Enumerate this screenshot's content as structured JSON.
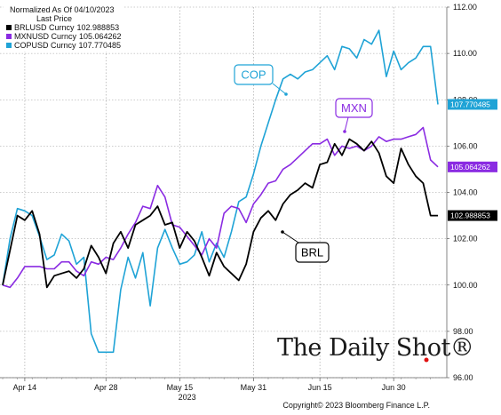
{
  "legend": {
    "header": "Normalized As Of 04/10/2023",
    "subheader": "Last Price",
    "items": [
      {
        "label": "BRLUSD Curncy",
        "value": "102.988853",
        "color": "#000000"
      },
      {
        "label": "MXNUSD Curncy",
        "value": "105.064262",
        "color": "#8a2be2"
      },
      {
        "label": "COPUSD Curncy",
        "value": "107.770485",
        "color": "#1fa3d6"
      }
    ]
  },
  "brand": "The Daily Shot®",
  "copyright": "Copyright© 2023 Bloomberg Finance L.P.",
  "chart_data": {
    "type": "line",
    "x_ticks": [
      "Apr 14",
      "Apr 28",
      "May 15",
      "May 31",
      "Jun 15",
      "Jun 30"
    ],
    "x_sublabel": "2023",
    "ylim": [
      96,
      112
    ],
    "yticks": [
      "96.00",
      "98.00",
      "100.00",
      "102.00",
      "104.00",
      "106.00",
      "108.00",
      "110.00",
      "112.00"
    ],
    "grid": true,
    "callouts": [
      "COP",
      "MXN",
      "BRL"
    ],
    "series": [
      {
        "name": "BRLUSD Curncy",
        "color": "#000000",
        "last_label": "102.988853",
        "values": [
          100.0,
          101.5,
          103.0,
          102.8,
          103.2,
          102.2,
          99.9,
          100.4,
          100.5,
          100.6,
          100.3,
          100.7,
          101.7,
          101.2,
          100.5,
          101.8,
          102.3,
          101.6,
          102.6,
          102.8,
          103.0,
          103.4,
          102.6,
          102.7,
          101.6,
          102.3,
          101.9,
          101.2,
          100.4,
          101.4,
          100.8,
          100.5,
          100.2,
          100.9,
          102.3,
          102.9,
          103.2,
          102.8,
          103.5,
          103.9,
          104.1,
          104.4,
          104.2,
          105.2,
          105.3,
          106.1,
          105.6,
          106.3,
          106.1,
          105.8,
          106.2,
          105.7,
          104.7,
          104.4,
          105.9,
          105.2,
          104.7,
          104.4,
          103.0,
          103.0
        ]
      },
      {
        "name": "MXNUSD Curncy",
        "color": "#8a2be2",
        "last_label": "105.064262",
        "values": [
          100.0,
          99.9,
          100.3,
          100.8,
          100.8,
          100.8,
          100.7,
          100.7,
          101.0,
          101.0,
          100.6,
          100.4,
          101.0,
          100.9,
          101.2,
          101.1,
          101.6,
          102.2,
          102.7,
          103.4,
          103.3,
          104.3,
          103.8,
          102.6,
          102.5,
          102.1,
          101.7,
          101.3,
          102.0,
          101.6,
          103.1,
          103.4,
          103.3,
          102.7,
          103.5,
          103.9,
          104.4,
          104.5,
          105.0,
          105.2,
          105.5,
          105.8,
          106.1,
          106.1,
          106.3,
          105.6,
          106.0,
          105.9,
          106.0,
          105.8,
          106.0,
          106.4,
          106.2,
          106.3,
          106.3,
          106.4,
          106.5,
          106.8,
          105.4,
          105.1
        ]
      },
      {
        "name": "COPUSD Curncy",
        "color": "#1fa3d6",
        "last_label": "107.770485",
        "values": [
          100.0,
          102.0,
          103.3,
          103.2,
          103.0,
          102.1,
          101.1,
          101.3,
          102.2,
          101.9,
          100.9,
          101.2,
          97.9,
          97.1,
          97.1,
          97.1,
          99.8,
          101.2,
          100.3,
          101.4,
          99.1,
          101.6,
          102.4,
          101.6,
          100.9,
          101.0,
          101.3,
          102.3,
          101.0,
          101.8,
          101.2,
          102.3,
          103.6,
          103.8,
          104.8,
          106.0,
          107.0,
          108.0,
          108.9,
          109.1,
          108.9,
          109.2,
          109.3,
          109.6,
          109.9,
          109.3,
          110.3,
          110.2,
          109.8,
          110.6,
          110.4,
          111.0,
          109.0,
          110.1,
          109.3,
          109.6,
          109.8,
          110.3,
          110.3,
          107.8
        ]
      }
    ]
  }
}
